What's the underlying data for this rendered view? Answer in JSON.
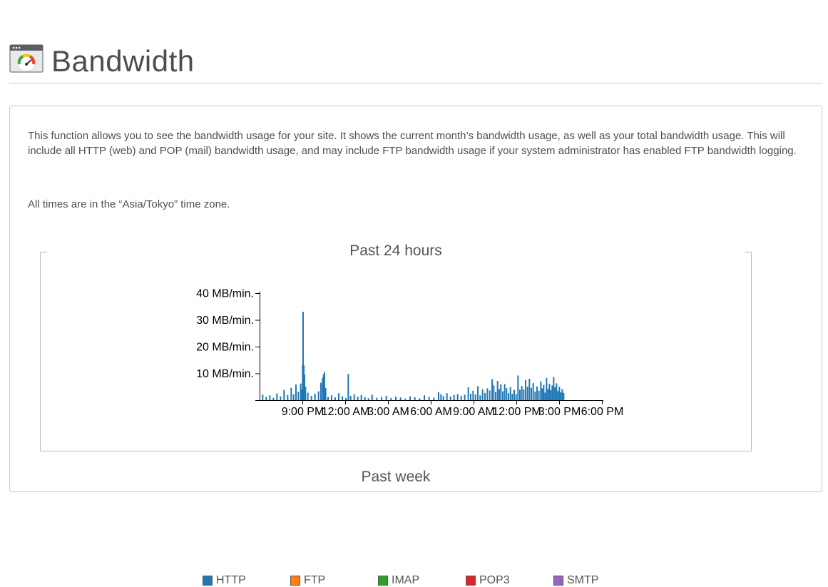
{
  "page": {
    "title": "Bandwidth",
    "icon": "gauge-icon"
  },
  "description": "This function allows you to see the bandwidth usage for your site. It shows the current month’s bandwidth usage, as well as your total bandwidth usage. This will include all HTTP (web) and POP (mail) bandwidth usage, and may include FTP bandwidth usage if your system administrator has enabled FTP bandwidth logging.",
  "timezone_note": "All times are in the “Asia/Tokyo” time zone.",
  "next_section_title": "Past week",
  "chart_data": {
    "type": "bar",
    "title": "Past 24 hours",
    "xlabel": "",
    "ylabel": "",
    "ylim": [
      0,
      40
    ],
    "yticks": [
      {
        "value": 10,
        "label": "10 MB/min."
      },
      {
        "value": 20,
        "label": "20 MB/min."
      },
      {
        "value": 30,
        "label": "30 MB/min."
      },
      {
        "value": 40,
        "label": "40 MB/min."
      }
    ],
    "xlim": [
      0,
      1440
    ],
    "xticks": [
      {
        "value": 180,
        "label": "9:00 PM"
      },
      {
        "value": 360,
        "label": "12:00 AM"
      },
      {
        "value": 540,
        "label": "3:00 AM"
      },
      {
        "value": 720,
        "label": "6:00 AM"
      },
      {
        "value": 900,
        "label": "9:00 AM"
      },
      {
        "value": 1080,
        "label": "12:00 PM"
      },
      {
        "value": 1260,
        "label": "3:00 PM"
      },
      {
        "value": 1440,
        "label": "6:00 PM"
      }
    ],
    "grid": false,
    "legend_position": "bottom",
    "series": [
      {
        "name": "HTTP",
        "color": "#1f77b4",
        "points": [
          [
            10,
            2.1
          ],
          [
            25,
            1.2
          ],
          [
            40,
            1.8
          ],
          [
            55,
            0.9
          ],
          [
            70,
            2.5
          ],
          [
            85,
            1.4
          ],
          [
            100,
            3.8
          ],
          [
            115,
            1.9
          ],
          [
            130,
            4.6
          ],
          [
            140,
            2.2
          ],
          [
            150,
            5.8
          ],
          [
            160,
            3.1
          ],
          [
            170,
            6.2
          ],
          [
            175,
            4.0
          ],
          [
            178,
            13.2
          ],
          [
            180,
            33.0
          ],
          [
            183,
            13.0
          ],
          [
            186,
            9.5
          ],
          [
            190,
            5.0
          ],
          [
            200,
            2.8
          ],
          [
            215,
            1.6
          ],
          [
            230,
            2.4
          ],
          [
            245,
            3.3
          ],
          [
            255,
            6.5
          ],
          [
            262,
            8.2
          ],
          [
            266,
            9.6
          ],
          [
            270,
            10.5
          ],
          [
            275,
            4.5
          ],
          [
            285,
            1.2
          ],
          [
            300,
            1.8
          ],
          [
            315,
            1.0
          ],
          [
            330,
            2.6
          ],
          [
            345,
            1.4
          ],
          [
            360,
            0.8
          ],
          [
            370,
            9.8
          ],
          [
            380,
            1.6
          ],
          [
            395,
            2.2
          ],
          [
            410,
            1.3
          ],
          [
            425,
            1.9
          ],
          [
            440,
            1.1
          ],
          [
            455,
            0.7
          ],
          [
            470,
            2.0
          ],
          [
            490,
            0.9
          ],
          [
            510,
            1.2
          ],
          [
            530,
            1.6
          ],
          [
            550,
            0.8
          ],
          [
            570,
            1.3
          ],
          [
            590,
            1.0
          ],
          [
            610,
            0.6
          ],
          [
            630,
            1.4
          ],
          [
            650,
            1.1
          ],
          [
            670,
            0.7
          ],
          [
            690,
            1.8
          ],
          [
            710,
            1.2
          ],
          [
            730,
            0.9
          ],
          [
            750,
            3.0
          ],
          [
            760,
            2.2
          ],
          [
            770,
            1.5
          ],
          [
            785,
            2.6
          ],
          [
            800,
            1.4
          ],
          [
            815,
            1.9
          ],
          [
            830,
            2.3
          ],
          [
            845,
            1.6
          ],
          [
            860,
            2.0
          ],
          [
            875,
            4.8
          ],
          [
            885,
            2.4
          ],
          [
            895,
            3.5
          ],
          [
            905,
            2.1
          ],
          [
            915,
            5.2
          ],
          [
            925,
            1.8
          ],
          [
            935,
            4.0
          ],
          [
            945,
            2.7
          ],
          [
            955,
            4.4
          ],
          [
            965,
            3.6
          ],
          [
            975,
            7.8
          ],
          [
            982,
            5.5
          ],
          [
            990,
            3.0
          ],
          [
            998,
            7.2
          ],
          [
            1005,
            4.1
          ],
          [
            1012,
            5.9
          ],
          [
            1020,
            3.3
          ],
          [
            1028,
            6.0
          ],
          [
            1036,
            4.5
          ],
          [
            1044,
            2.6
          ],
          [
            1052,
            4.9
          ],
          [
            1060,
            2.4
          ],
          [
            1068,
            3.8
          ],
          [
            1076,
            2.2
          ],
          [
            1084,
            9.2
          ],
          [
            1092,
            3.9
          ],
          [
            1100,
            5.3
          ],
          [
            1108,
            4.0
          ],
          [
            1116,
            7.5
          ],
          [
            1124,
            5.0
          ],
          [
            1132,
            8.0
          ],
          [
            1140,
            4.6
          ],
          [
            1148,
            6.4
          ],
          [
            1156,
            3.2
          ],
          [
            1164,
            5.1
          ],
          [
            1172,
            3.5
          ],
          [
            1180,
            7.0
          ],
          [
            1186,
            4.4
          ],
          [
            1192,
            5.7
          ],
          [
            1198,
            2.8
          ],
          [
            1204,
            8.3
          ],
          [
            1210,
            4.2
          ],
          [
            1216,
            6.1
          ],
          [
            1222,
            3.7
          ],
          [
            1228,
            5.5
          ],
          [
            1234,
            8.6
          ],
          [
            1240,
            4.8
          ],
          [
            1246,
            6.3
          ],
          [
            1252,
            3.4
          ],
          [
            1258,
            5.0
          ],
          [
            1264,
            2.9
          ],
          [
            1270,
            4.1
          ],
          [
            1276,
            2.7
          ]
        ]
      },
      {
        "name": "FTP",
        "color": "#ff7f0e",
        "points": []
      },
      {
        "name": "IMAP",
        "color": "#2ca02c",
        "points": []
      },
      {
        "name": "POP3",
        "color": "#d62728",
        "points": []
      },
      {
        "name": "SMTP",
        "color": "#9467bd",
        "points": []
      }
    ]
  }
}
